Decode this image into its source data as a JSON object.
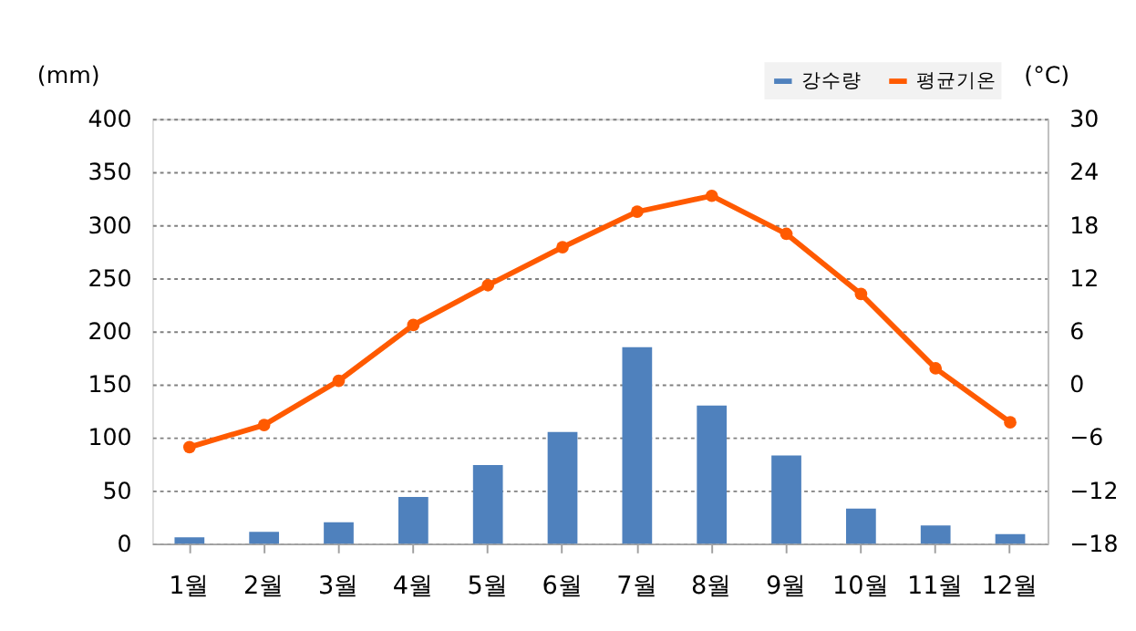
{
  "chart_data": {
    "type": "bar",
    "categories": [
      "1월",
      "2월",
      "3월",
      "4월",
      "5월",
      "6월",
      "7월",
      "8월",
      "9월",
      "10월",
      "11월",
      "12월"
    ],
    "series": [
      {
        "name": "강수량",
        "color": "#4f81bd",
        "values": [
          6,
          11,
          20,
          44,
          74,
          105,
          185,
          130,
          83,
          33,
          17,
          9
        ]
      },
      {
        "name": "평균기온",
        "type": "line",
        "axis": "y2",
        "color": "#ff5a00",
        "marker": "circle",
        "values": [
          -7.1,
          -4.6,
          0.4,
          6.7,
          11.2,
          15.5,
          19.5,
          21.3,
          17.0,
          10.2,
          1.8,
          -4.3
        ]
      }
    ],
    "ylabel": "(mm)",
    "y2label": "(°C)",
    "ylim": [
      0,
      400
    ],
    "yticks": [
      0,
      50,
      100,
      150,
      200,
      250,
      300,
      350,
      400
    ],
    "y2lim": [
      -18,
      30
    ],
    "y2ticks": [
      -18,
      -12,
      -6,
      0,
      6,
      12,
      18,
      24,
      30
    ],
    "grid": "y",
    "legend": "top right"
  }
}
